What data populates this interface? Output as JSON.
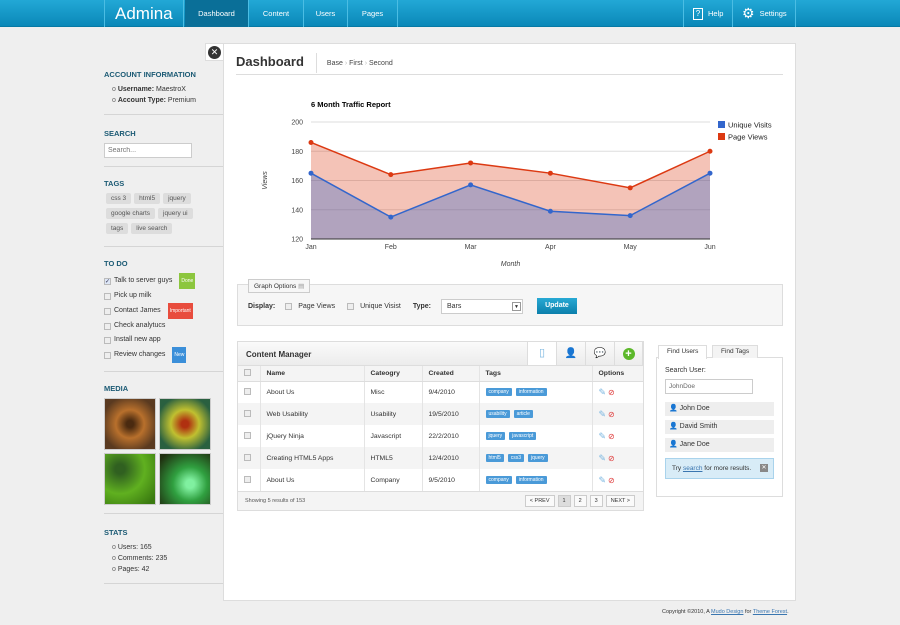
{
  "app": {
    "title": "Admina"
  },
  "nav": {
    "items": [
      "Dashboard",
      "Content",
      "Users",
      "Pages"
    ],
    "active": "Dashboard",
    "help": "Help",
    "settings": "Settings"
  },
  "sidebar": {
    "account": {
      "title": "ACCOUNT INFORMATION",
      "username_label": "Username:",
      "username": "MaestroX",
      "type_label": "Account Type:",
      "type": "Premium"
    },
    "search": {
      "title": "SEARCH",
      "placeholder": "Search..."
    },
    "tags": {
      "title": "TAGS",
      "items": [
        "css 3",
        "html5",
        "jquery",
        "google charts",
        "jquery ui",
        "tags",
        "live search"
      ]
    },
    "todo": {
      "title": "TO DO",
      "items": [
        {
          "label": "Talk to server guys",
          "checked": true,
          "badge": "Done",
          "badge_color": "#8cc63e"
        },
        {
          "label": "Pick up milk",
          "checked": false
        },
        {
          "label": "Contact James",
          "checked": false,
          "badge": "Important",
          "badge_color": "#e84c3d"
        },
        {
          "label": "Check analytucs",
          "checked": false
        },
        {
          "label": "Install new app",
          "checked": false
        },
        {
          "label": "Review changes",
          "checked": false,
          "badge": "New",
          "badge_color": "#3b8fd9"
        }
      ]
    },
    "media": {
      "title": "MEDIA"
    },
    "stats": {
      "title": "STATS",
      "items": [
        "Users: 165",
        "Comments: 235",
        "Pages: 42"
      ]
    }
  },
  "page": {
    "title": "Dashboard",
    "breadcrumb": [
      "Base",
      "First",
      "Second"
    ]
  },
  "chart_data": {
    "type": "area",
    "title": "6 Month Traffic Report",
    "xlabel": "Month",
    "ylabel": "Views",
    "categories": [
      "Jan",
      "Feb",
      "Mar",
      "Apr",
      "May",
      "Jun"
    ],
    "ylim": [
      120,
      200
    ],
    "yticks": [
      120,
      140,
      160,
      180,
      200
    ],
    "grid": true,
    "legend": "right",
    "series": [
      {
        "name": "Unique Visits",
        "color": "#3366cc",
        "values": [
          165,
          135,
          157,
          139,
          136,
          165
        ]
      },
      {
        "name": "Page Views",
        "color": "#dc3912",
        "values": [
          186,
          164,
          172,
          165,
          155,
          180
        ]
      }
    ]
  },
  "graph_options": {
    "legend": "Graph Options",
    "display_label": "Display:",
    "opt1": "Page Views",
    "opt2": "Unique Visist",
    "type_label": "Type:",
    "type_value": "Bars",
    "update": "Update"
  },
  "content_manager": {
    "title": "Content Manager",
    "columns": [
      "Name",
      "Cateogry",
      "Created",
      "Tags",
      "Options"
    ],
    "rows": [
      {
        "name": "About Us",
        "category": "Misc",
        "created": "9/4/2010",
        "tags": [
          "company",
          "information"
        ]
      },
      {
        "name": "Web Usability",
        "category": "Usability",
        "created": "19/5/2010",
        "tags": [
          "usability",
          "article"
        ]
      },
      {
        "name": "jQuery Ninja",
        "category": "Javascript",
        "created": "22/2/2010",
        "tags": [
          "jquery",
          "javascript"
        ]
      },
      {
        "name": "Creating HTML5 Apps",
        "category": "HTML5",
        "created": "12/4/2010",
        "tags": [
          "html5",
          "css3",
          "jquery"
        ]
      },
      {
        "name": "About Us",
        "category": "Company",
        "created": "9/5/2010",
        "tags": [
          "company",
          "information"
        ]
      }
    ],
    "footer": "Showing 5 results of 153",
    "prev": "< PREV",
    "pages": [
      "1",
      "2",
      "3"
    ],
    "current_page": "1",
    "next": "NEXT >"
  },
  "finder": {
    "tabs": [
      "Find Users",
      "Find Tags"
    ],
    "label": "Search User:",
    "value": "JohnDoe",
    "users": [
      "John Doe",
      "David Smith",
      "Jane Doe"
    ],
    "hint_pre": "Try ",
    "hint_link": "search",
    "hint_post": " for more results."
  },
  "footer": {
    "pre": "Copyright ©2010, A ",
    "link1": "Mudo Design",
    "mid": " for ",
    "link2": "Theme Forest",
    "end": "."
  }
}
